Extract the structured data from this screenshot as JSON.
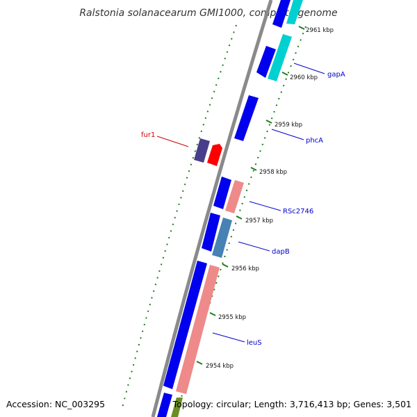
{
  "title": "Ralstonia solanacearum GMI1000, complete genome",
  "accession_text": "Accession: NC_003295",
  "topology_text": "Topology: circular; Length: 3,716,413 bp; Genes: 3,501",
  "colors": {
    "backbone": "#8a8a8a",
    "tick": "#1e7a1e",
    "forward_cds": "#0000ee",
    "highlight_red": "#ff0000",
    "label_blue": "#0000cc",
    "label_red": "#cc0000",
    "purple": "#483d8b",
    "pink": "#ee8a8a",
    "steelblue": "#4682b4",
    "cyan": "#00d0d0",
    "olive": "#6b8e23"
  },
  "ticks": [
    {
      "label": "2961 kbp"
    },
    {
      "label": "2960 kbp"
    },
    {
      "label": "2959 kbp"
    },
    {
      "label": "2958 kbp"
    },
    {
      "label": "2957 kbp"
    },
    {
      "label": "2956 kbp"
    },
    {
      "label": "2955 kbp"
    },
    {
      "label": "2954 kbp"
    }
  ],
  "gene_labels": [
    {
      "name": "gapA",
      "color": "#0000cc"
    },
    {
      "name": "phcA",
      "color": "#0000cc"
    },
    {
      "name": "RSc2746",
      "color": "#0000cc"
    },
    {
      "name": "dapB",
      "color": "#0000cc"
    },
    {
      "name": "leuS",
      "color": "#0000cc"
    },
    {
      "name": "fur1",
      "color": "#cc0000"
    }
  ]
}
